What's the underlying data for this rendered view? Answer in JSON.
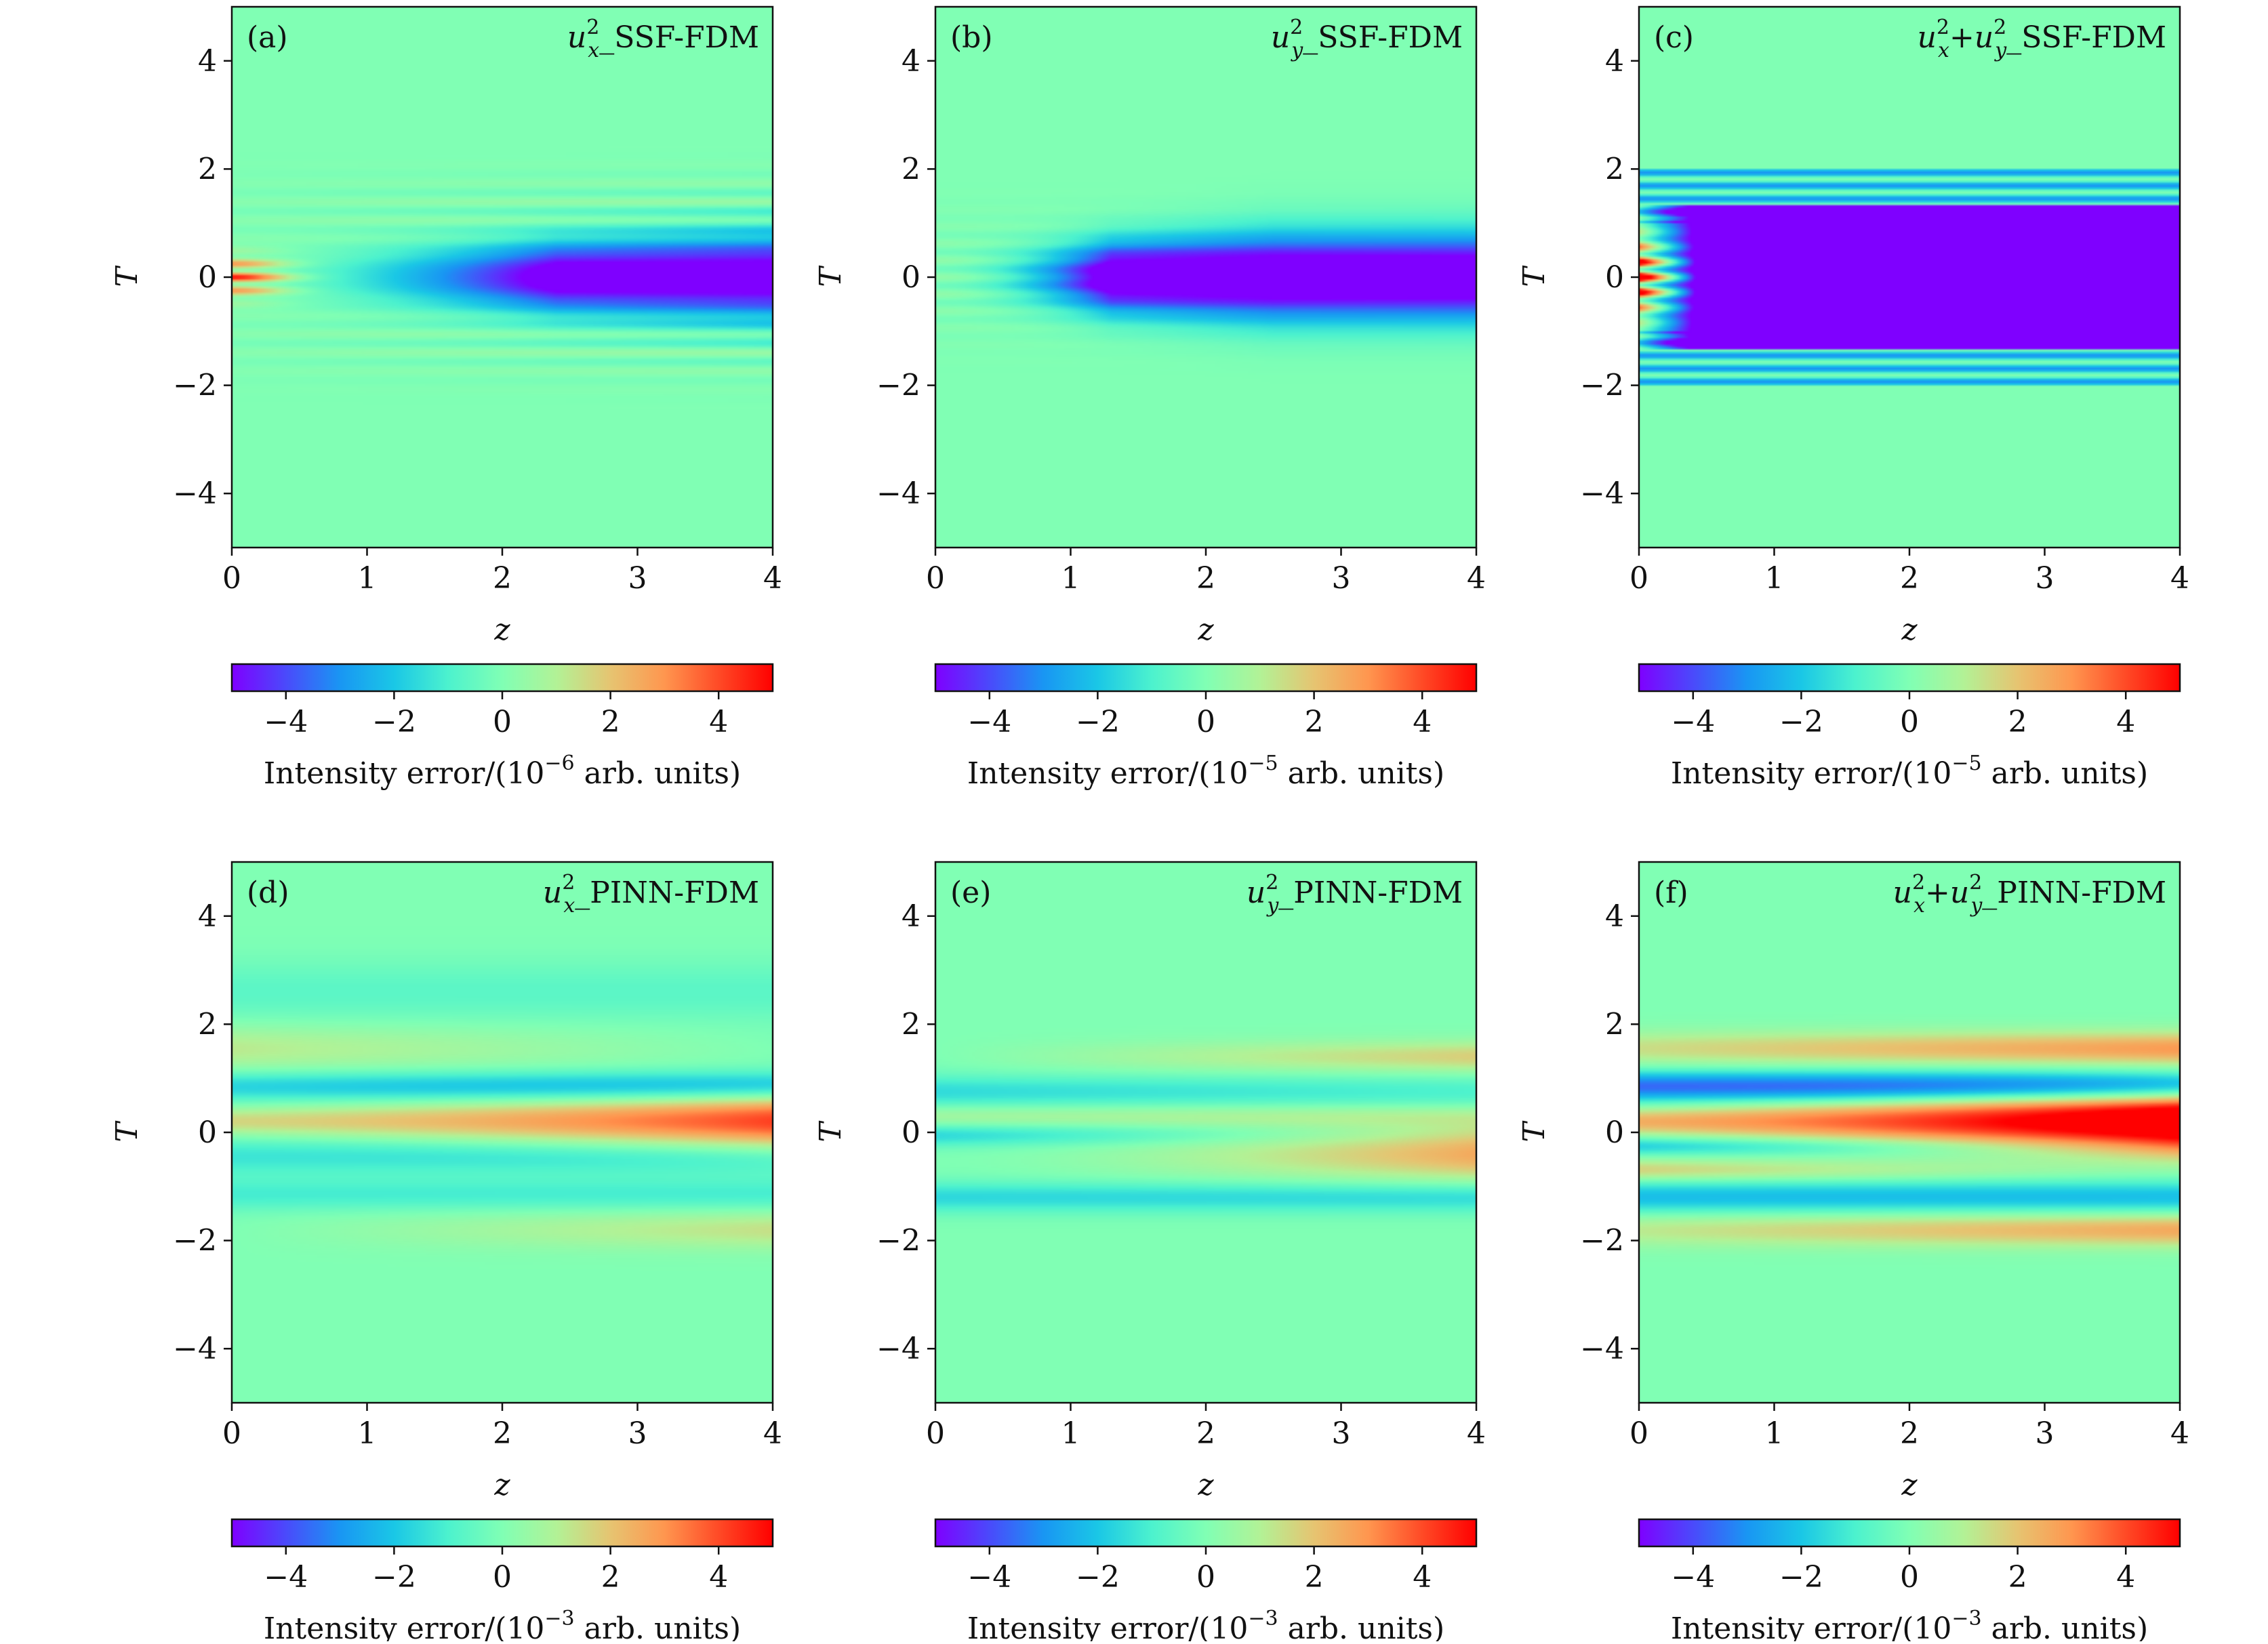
{
  "figure": {
    "colormap": [
      "#7f00ff",
      "#4a4afb",
      "#1996f3",
      "#1ac7e6",
      "#4cf2ce",
      "#80ffb4",
      "#b2f296",
      "#e6c471",
      "#ff964f",
      "#ff4a26",
      "#ff0000"
    ]
  },
  "chart_data": [
    {
      "type": "heatmap",
      "panel_label": "(a)",
      "title_parts": {
        "pre": "u",
        "sup1": "2",
        "sub1": "x",
        "mid": "",
        "sup2": "",
        "sub2": "",
        "post": "_SSF-FDM"
      },
      "xlabel": "z",
      "ylabel": "T",
      "xlim": [
        0,
        4
      ],
      "ylim": [
        -5,
        5
      ],
      "x_ticks": [
        "0",
        "1",
        "2",
        "3",
        "4"
      ],
      "y_ticks": [
        "4",
        "2",
        "0",
        "−2",
        "−4"
      ],
      "clim": [
        -5,
        5
      ],
      "colorbar_ticks": [
        "−4",
        "−2",
        "0",
        "2",
        "4"
      ],
      "colorbar_label": {
        "pre": "Intensity error/(10",
        "exp": "−6",
        "post": " arb. units)"
      },
      "pattern": "ssf_x"
    },
    {
      "type": "heatmap",
      "panel_label": "(b)",
      "title_parts": {
        "pre": "u",
        "sup1": "2",
        "sub1": "y",
        "mid": "",
        "sup2": "",
        "sub2": "",
        "post": "_SSF-FDM"
      },
      "xlabel": "z",
      "ylabel": "T",
      "xlim": [
        0,
        4
      ],
      "ylim": [
        -5,
        5
      ],
      "x_ticks": [
        "0",
        "1",
        "2",
        "3",
        "4"
      ],
      "y_ticks": [
        "4",
        "2",
        "0",
        "−2",
        "−4"
      ],
      "clim": [
        -5,
        5
      ],
      "colorbar_ticks": [
        "−4",
        "−2",
        "0",
        "2",
        "4"
      ],
      "colorbar_label": {
        "pre": "Intensity error/(10",
        "exp": "−5",
        "post": " arb. units)"
      },
      "pattern": "ssf_y"
    },
    {
      "type": "heatmap",
      "panel_label": "(c)",
      "title_parts": {
        "pre": "u",
        "sup1": "2",
        "sub1": "x",
        "mid": "+u",
        "sup2": "2",
        "sub2": "y",
        "post": "_SSF-FDM"
      },
      "xlabel": "z",
      "ylabel": "T",
      "xlim": [
        0,
        4
      ],
      "ylim": [
        -5,
        5
      ],
      "x_ticks": [
        "0",
        "1",
        "2",
        "3",
        "4"
      ],
      "y_ticks": [
        "4",
        "2",
        "0",
        "−2",
        "−4"
      ],
      "clim": [
        -5,
        5
      ],
      "colorbar_ticks": [
        "−4",
        "−2",
        "0",
        "2",
        "4"
      ],
      "colorbar_label": {
        "pre": "Intensity error/(10",
        "exp": "−5",
        "post": " arb. units)"
      },
      "pattern": "ssf_sum"
    },
    {
      "type": "heatmap",
      "panel_label": "(d)",
      "title_parts": {
        "pre": "u",
        "sup1": "2",
        "sub1": "x",
        "mid": "",
        "sup2": "",
        "sub2": "",
        "post": "_PINN-FDM"
      },
      "xlabel": "z",
      "ylabel": "T",
      "xlim": [
        0,
        4
      ],
      "ylim": [
        -5,
        5
      ],
      "x_ticks": [
        "0",
        "1",
        "2",
        "3",
        "4"
      ],
      "y_ticks": [
        "4",
        "2",
        "0",
        "−2",
        "−4"
      ],
      "clim": [
        -5,
        5
      ],
      "colorbar_ticks": [
        "−4",
        "−2",
        "0",
        "2",
        "4"
      ],
      "colorbar_label": {
        "pre": "Intensity error/(10",
        "exp": "−3",
        "post": " arb. units)"
      },
      "pattern": "pinn_x"
    },
    {
      "type": "heatmap",
      "panel_label": "(e)",
      "title_parts": {
        "pre": "u",
        "sup1": "2",
        "sub1": "y",
        "mid": "",
        "sup2": "",
        "sub2": "",
        "post": "_PINN-FDM"
      },
      "xlabel": "z",
      "ylabel": "T",
      "xlim": [
        0,
        4
      ],
      "ylim": [
        -5,
        5
      ],
      "x_ticks": [
        "0",
        "1",
        "2",
        "3",
        "4"
      ],
      "y_ticks": [
        "4",
        "2",
        "0",
        "−2",
        "−4"
      ],
      "clim": [
        -5,
        5
      ],
      "colorbar_ticks": [
        "−4",
        "−2",
        "0",
        "2",
        "4"
      ],
      "colorbar_label": {
        "pre": "Intensity error/(10",
        "exp": "−3",
        "post": " arb. units)"
      },
      "pattern": "pinn_y"
    },
    {
      "type": "heatmap",
      "panel_label": "(f)",
      "title_parts": {
        "pre": "u",
        "sup1": "2",
        "sub1": "x",
        "mid": "+u",
        "sup2": "2",
        "sub2": "y",
        "post": "_PINN-FDM"
      },
      "xlabel": "z",
      "ylabel": "T",
      "xlim": [
        0,
        4
      ],
      "ylim": [
        -5,
        5
      ],
      "x_ticks": [
        "0",
        "1",
        "2",
        "3",
        "4"
      ],
      "y_ticks": [
        "4",
        "2",
        "0",
        "−2",
        "−4"
      ],
      "clim": [
        -5,
        5
      ],
      "colorbar_ticks": [
        "−4",
        "−2",
        "0",
        "2",
        "4"
      ],
      "colorbar_label": {
        "pre": "Intensity error/(10",
        "exp": "−3",
        "post": " arb. units)"
      },
      "pattern": "pinn_sum"
    }
  ]
}
